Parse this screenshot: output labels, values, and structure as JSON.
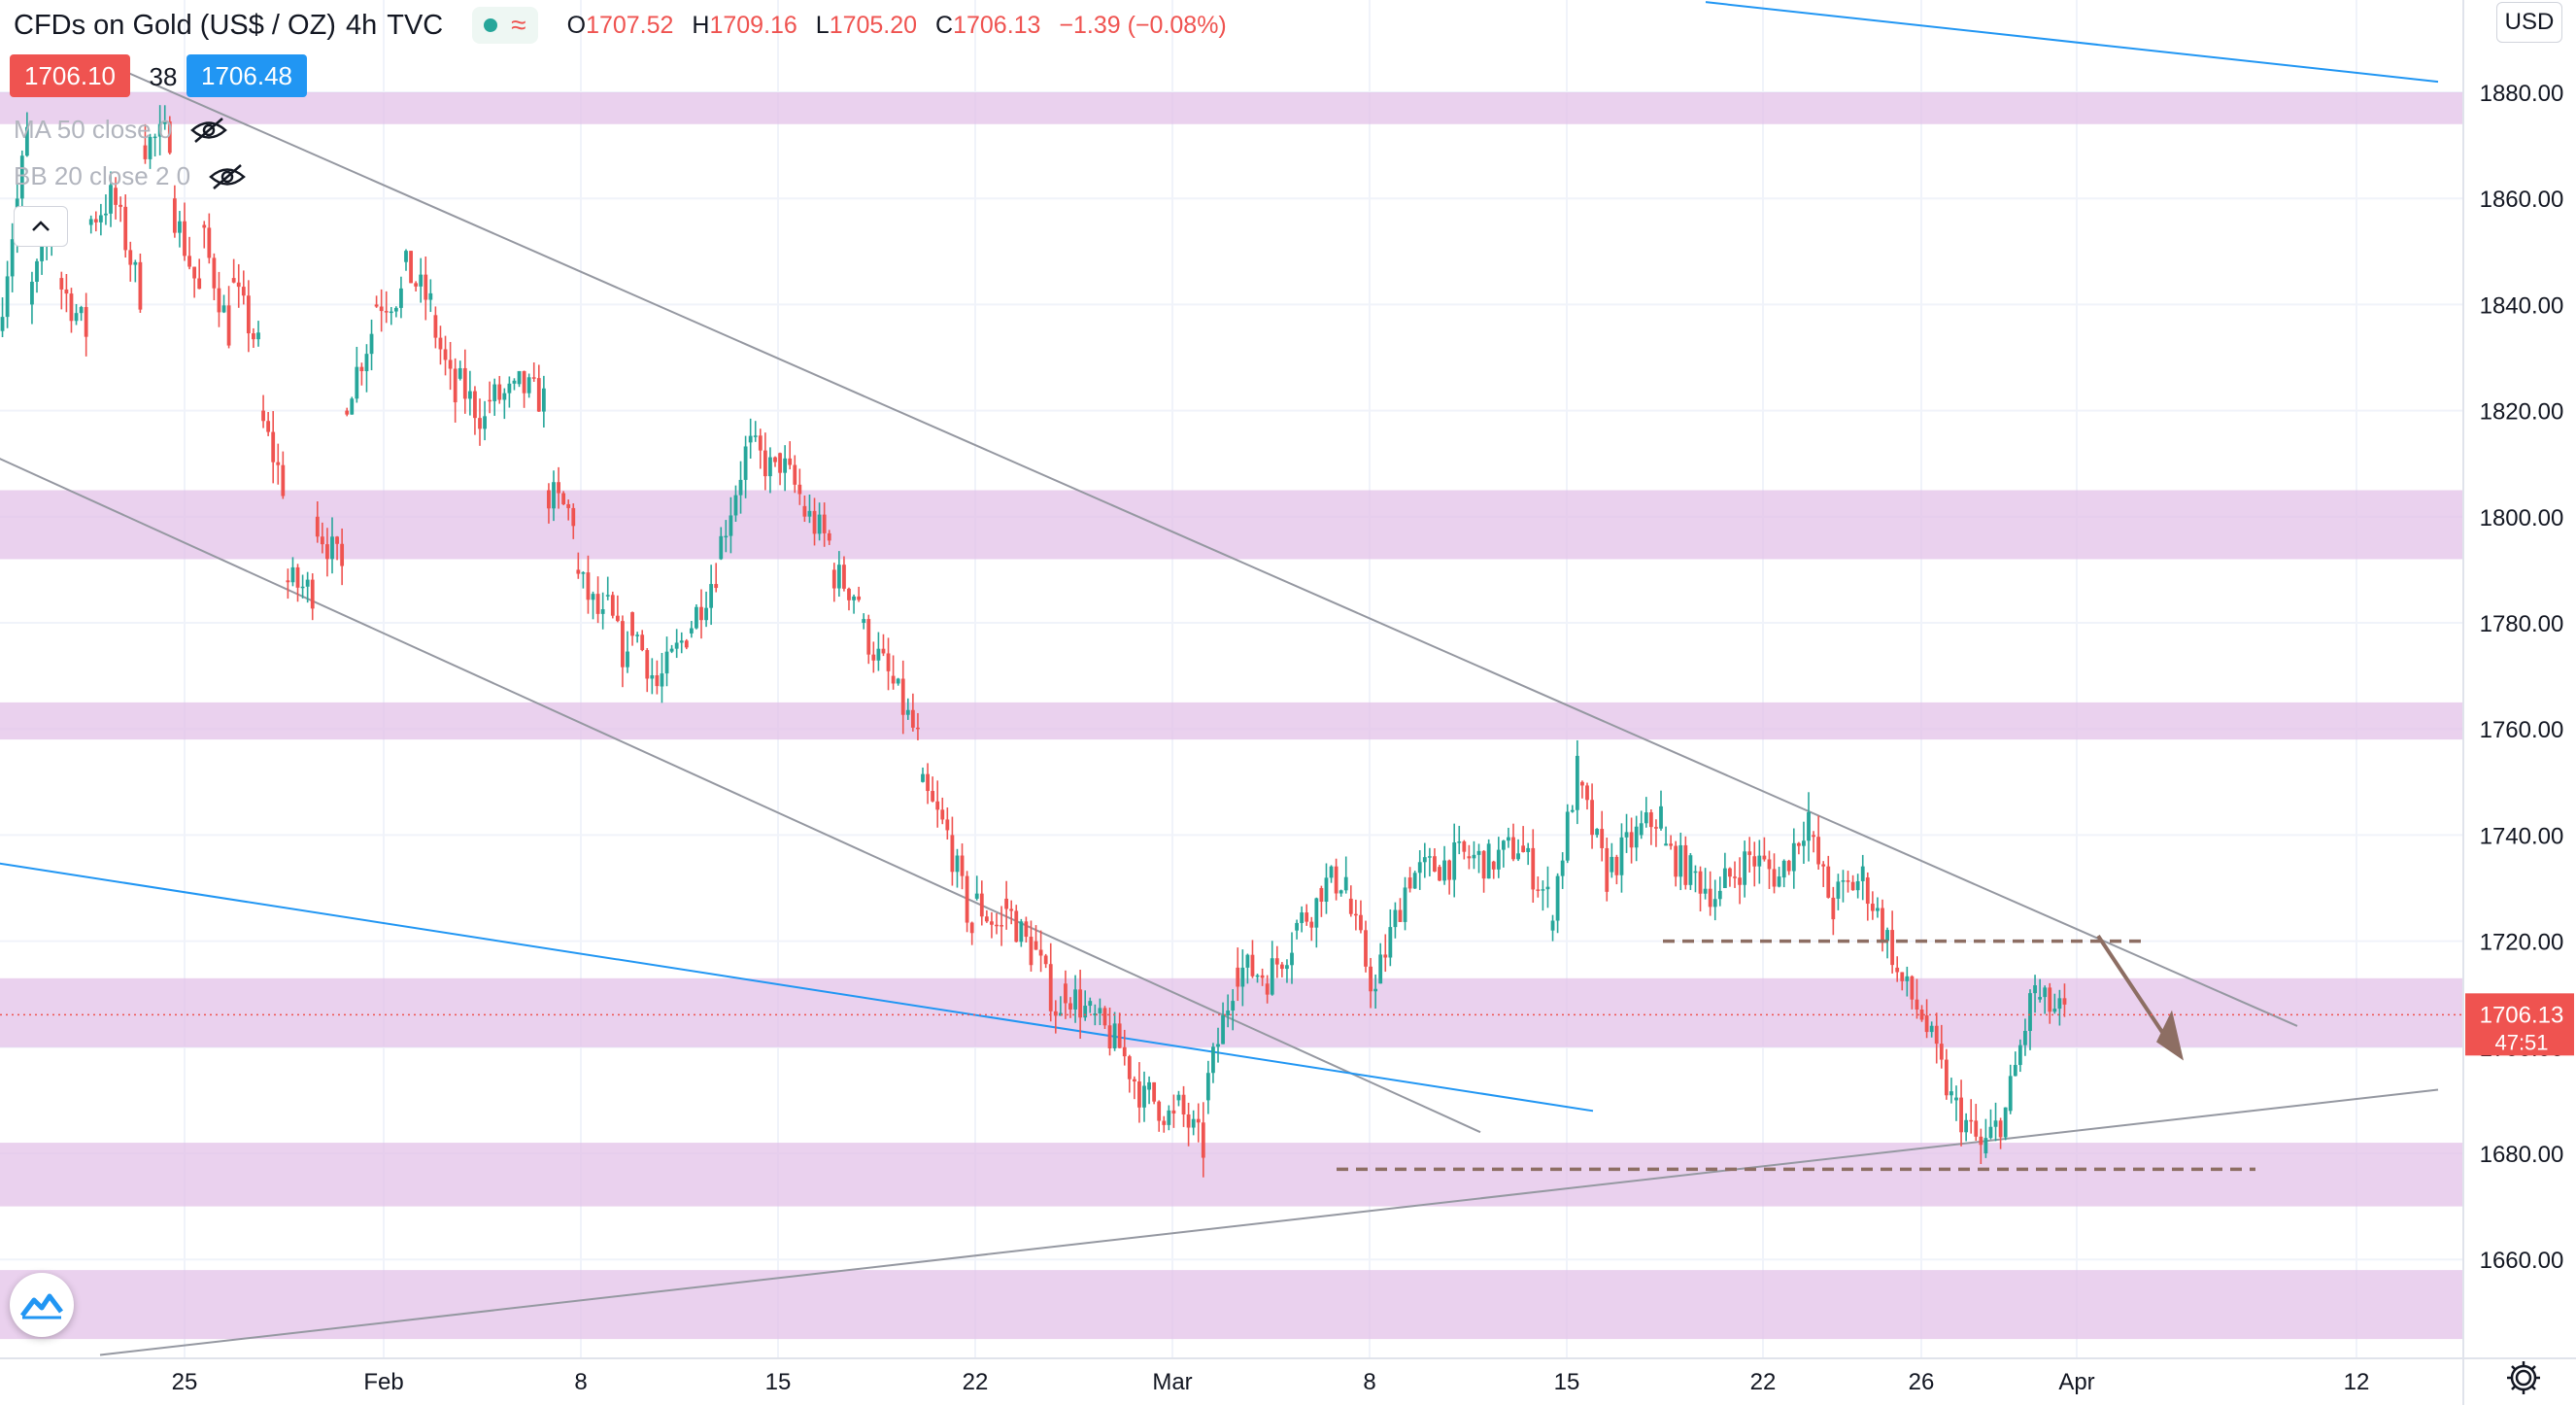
{
  "header": {
    "symbol": "CFDs on Gold (US$ / OZ)",
    "interval": "4h",
    "source": "TVC",
    "ohlc": {
      "open": "1707.52",
      "high": "1709.16",
      "low": "1705.20",
      "close": "1706.13",
      "change": "−1.39 (−0.08%)"
    },
    "labels": {
      "open": "O",
      "high": "H",
      "low": "L",
      "close": "C"
    }
  },
  "trade": {
    "sell_price": "1706.10",
    "spread": "38",
    "buy_price": "1706.48"
  },
  "indicators": [
    {
      "label": "MA 50 close 0"
    },
    {
      "label": "BB 20 close 2 0"
    }
  ],
  "currency_button": "USD",
  "last_price": {
    "value": "1706.13",
    "countdown": "47:51"
  },
  "colors": {
    "up": "#26a69a",
    "down": "#ef5350",
    "zone": "#e1bee7",
    "trendline_gray": "#9598a1",
    "trendline_blue": "#2196f3",
    "projection": "#8d6e63",
    "last_price": "#ef5350"
  },
  "chart_data": {
    "type": "candlestick",
    "ylim": [
      1645,
      1886
    ],
    "y_ticks": [
      "1880.00",
      "1860.00",
      "1840.00",
      "1820.00",
      "1800.00",
      "1780.00",
      "1760.00",
      "1740.00",
      "1720.00",
      "1700.00",
      "1680.00",
      "1660.00"
    ],
    "x_ticks": [
      "25",
      "Feb",
      "8",
      "15",
      "22",
      "Mar",
      "8",
      "15",
      "22",
      "26",
      "Apr",
      "12"
    ],
    "support_resistance_zones": [
      [
        1874,
        1880
      ],
      [
        1792,
        1805
      ],
      [
        1758,
        1765
      ],
      [
        1700,
        1713
      ],
      [
        1670,
        1682
      ],
      [
        1645,
        1658
      ]
    ],
    "dashed_levels": [
      1720,
      1677
    ],
    "trend_path": [
      [
        1835,
        1872
      ],
      [
        1840,
        1858
      ],
      [
        1845,
        1835
      ],
      [
        1855,
        1860
      ],
      [
        1862,
        1842
      ],
      [
        1870,
        1872
      ],
      [
        1860,
        1842
      ],
      [
        1855,
        1835
      ],
      [
        1845,
        1832
      ],
      [
        1820,
        1806
      ],
      [
        1788,
        1786
      ],
      [
        1800,
        1790
      ],
      [
        1820,
        1835
      ],
      [
        1840,
        1842
      ],
      [
        1848,
        1840
      ],
      [
        1838,
        1822
      ],
      [
        1826,
        1818
      ],
      [
        1822,
        1823
      ],
      [
        1825,
        1822
      ],
      [
        1805,
        1800
      ],
      [
        1790,
        1780
      ],
      [
        1785,
        1772
      ],
      [
        1782,
        1768
      ],
      [
        1768,
        1778
      ],
      [
        1778,
        1790
      ],
      [
        1792,
        1812
      ],
      [
        1814,
        1808
      ],
      [
        1812,
        1804
      ],
      [
        1802,
        1795
      ],
      [
        1790,
        1785
      ],
      [
        1780,
        1770
      ],
      [
        1770,
        1758
      ],
      [
        1750,
        1740
      ],
      [
        1740,
        1722
      ],
      [
        1728,
        1722
      ],
      [
        1728,
        1718
      ],
      [
        1720,
        1705
      ],
      [
        1712,
        1706
      ],
      [
        1706,
        1700
      ],
      [
        1700,
        1690
      ],
      [
        1692,
        1686
      ],
      [
        1690,
        1681
      ],
      [
        1690,
        1712
      ],
      [
        1715,
        1714
      ],
      [
        1712,
        1720
      ],
      [
        1722,
        1727
      ],
      [
        1730,
        1732
      ],
      [
        1728,
        1710
      ],
      [
        1712,
        1730
      ],
      [
        1732,
        1734
      ],
      [
        1734,
        1736
      ],
      [
        1736,
        1735
      ],
      [
        1735,
        1738
      ],
      [
        1738,
        1728
      ],
      [
        1722,
        1752
      ],
      [
        1750,
        1732
      ],
      [
        1733,
        1740
      ],
      [
        1740,
        1744
      ],
      [
        1738,
        1733
      ],
      [
        1733,
        1728
      ],
      [
        1730,
        1736
      ],
      [
        1736,
        1732
      ],
      [
        1732,
        1744
      ],
      [
        1740,
        1726
      ],
      [
        1728,
        1732
      ],
      [
        1732,
        1718
      ],
      [
        1715,
        1706
      ],
      [
        1706,
        1690
      ],
      [
        1690,
        1681
      ],
      [
        1680,
        1688
      ],
      [
        1688,
        1712
      ],
      [
        1709,
        1706
      ]
    ],
    "trendlines": [
      {
        "color": "gray",
        "points": [
          [
            "2021-01-22",
            1886
          ],
          [
            "2021-04-10",
            1704
          ]
        ]
      },
      {
        "color": "gray",
        "points": [
          [
            "2021-01-18",
            1812
          ],
          [
            "2021-03-12",
            1684
          ]
        ]
      },
      {
        "color": "gray",
        "points": [
          [
            "2021-01-22",
            1642
          ],
          [
            "2021-04-15",
            1692
          ]
        ]
      },
      {
        "color": "blue",
        "points": [
          [
            "2021-01-18",
            1735
          ],
          [
            "2021-03-16",
            1688
          ]
        ]
      },
      {
        "color": "blue",
        "points": [
          [
            "2021-03-20",
            1897
          ],
          [
            "2021-04-15",
            1882
          ]
        ]
      }
    ]
  }
}
